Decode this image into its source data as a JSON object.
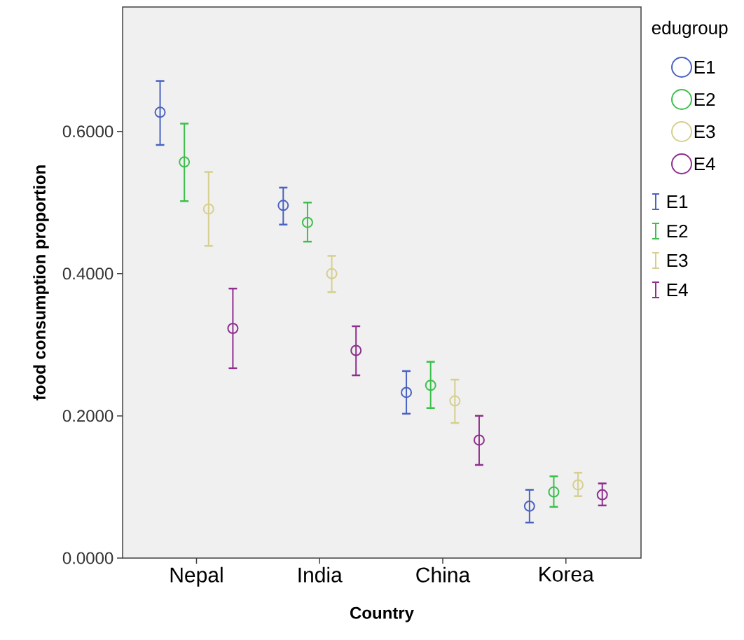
{
  "chart_data": {
    "type": "scatter",
    "xlabel": "Country",
    "ylabel": "food consumption proportion",
    "legend_title": "edugroup",
    "legend": "right",
    "marker": "circle",
    "grid": false,
    "categories": [
      "Nepal",
      "India",
      "China",
      "Korea"
    ],
    "ylim": [
      0,
      0.775
    ],
    "yticks": [
      {
        "value": 0,
        "label": "0.0000"
      },
      {
        "value": 0.2,
        "label": "0.2000"
      },
      {
        "value": 0.4,
        "label": "0.4000"
      },
      {
        "value": 0.6,
        "label": "0.6000"
      }
    ],
    "series": [
      {
        "name": "E1",
        "color": "#4a62c2",
        "values": [
          0.627,
          0.496,
          0.233,
          0.073
        ],
        "errors": [
          [
            0.581,
            0.671
          ],
          [
            0.469,
            0.521
          ],
          [
            0.203,
            0.263
          ],
          [
            0.05,
            0.096
          ]
        ]
      },
      {
        "name": "E2",
        "color": "#3dbf4c",
        "values": [
          0.557,
          0.472,
          0.243,
          0.093
        ],
        "errors": [
          [
            0.502,
            0.611
          ],
          [
            0.445,
            0.5
          ],
          [
            0.211,
            0.276
          ],
          [
            0.072,
            0.115
          ]
        ]
      },
      {
        "name": "E3",
        "color": "#d6cf8e",
        "values": [
          0.491,
          0.4,
          0.221,
          0.103
        ],
        "errors": [
          [
            0.439,
            0.543
          ],
          [
            0.374,
            0.425
          ],
          [
            0.19,
            0.251
          ],
          [
            0.087,
            0.12
          ]
        ]
      },
      {
        "name": "E4",
        "color": "#8e2f8e",
        "values": [
          0.323,
          0.292,
          0.166,
          0.089
        ],
        "errors": [
          [
            0.267,
            0.379
          ],
          [
            0.257,
            0.326
          ],
          [
            0.131,
            0.2
          ],
          [
            0.074,
            0.105
          ]
        ]
      }
    ]
  }
}
